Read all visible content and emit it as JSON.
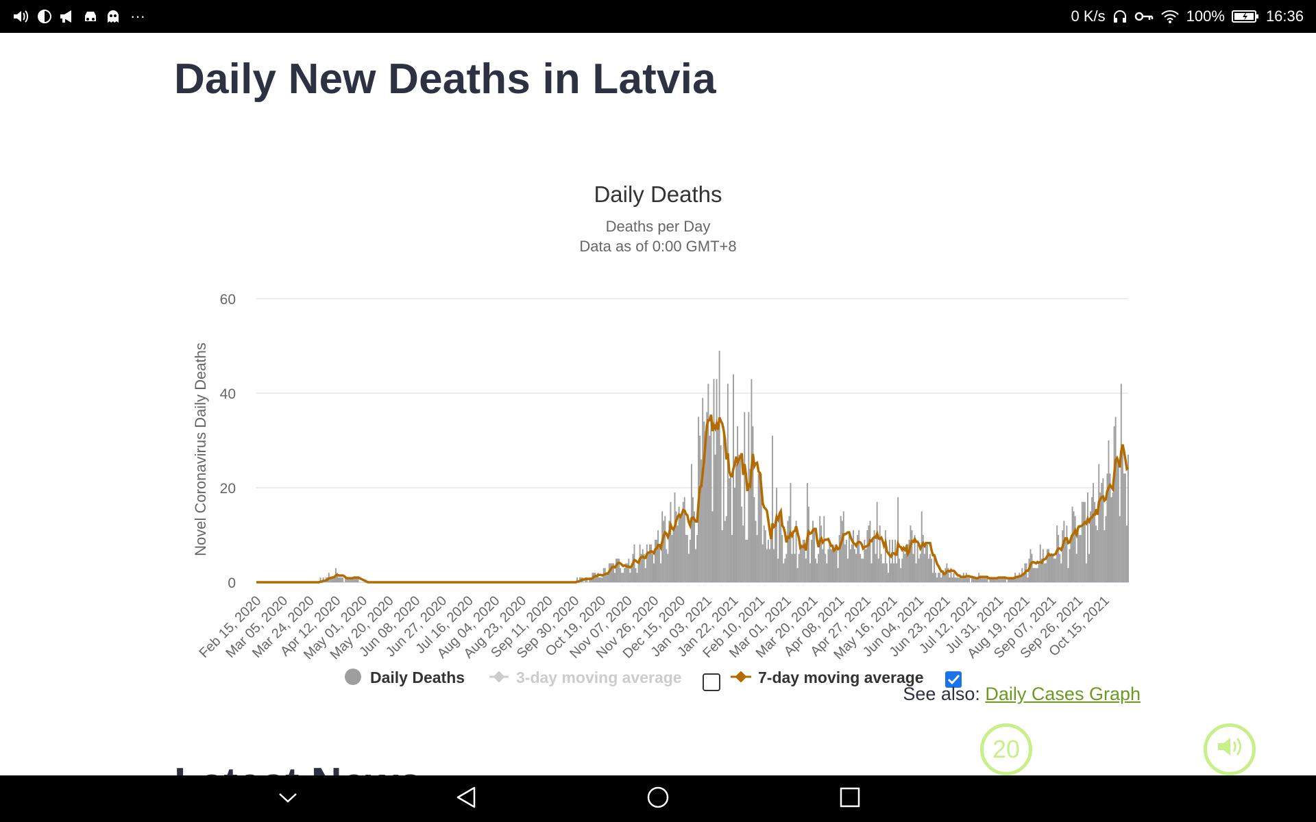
{
  "status_bar": {
    "network_speed": "0 K/s",
    "battery": "100%",
    "time": "16:36",
    "left_icons": [
      "volume-icon",
      "dnd-icon",
      "megaphone-icon",
      "car-icon",
      "ghost-icon",
      "more-dots-icon"
    ],
    "overflow_label": "···"
  },
  "page": {
    "title": "Daily New Deaths in Latvia",
    "see_also_prefix": "See also: ",
    "see_also_link": "Daily Cases Graph",
    "next_section_title": "Latest News"
  },
  "floating_buttons": {
    "counter_value": "20"
  },
  "chart_data": {
    "type": "bar",
    "title": "Daily Deaths",
    "subtitle_line1": "Deaths per Day",
    "subtitle_line2": "Data as of 0:00 GMT+8",
    "xlabel": "",
    "ylabel": "Novel Coronavirus Daily Deaths",
    "ylim": [
      0,
      60
    ],
    "yticks": [
      0,
      20,
      40,
      60
    ],
    "grid": true,
    "x_tick_labels": [
      "Feb 15, 2020",
      "Mar 05, 2020",
      "Mar 24, 2020",
      "Apr 12, 2020",
      "May 01, 2020",
      "May 20, 2020",
      "Jun 08, 2020",
      "Jun 27, 2020",
      "Jul 16, 2020",
      "Aug 04, 2020",
      "Aug 23, 2020",
      "Sep 11, 2020",
      "Sep 30, 2020",
      "Oct 19, 2020",
      "Nov 07, 2020",
      "Nov 26, 2020",
      "Dec 15, 2020",
      "Jan 03, 2021",
      "Jan 22, 2021",
      "Feb 10, 2021",
      "Mar 01, 2021",
      "Mar 20, 2021",
      "Apr 08, 2021",
      "Apr 27, 2021",
      "May 16, 2021",
      "Jun 04, 2021",
      "Jun 23, 2021",
      "Jul 12, 2021",
      "Jul 31, 2021",
      "Aug 19, 2021",
      "Sep 07, 2021",
      "Sep 26, 2021",
      "Oct 15, 2021"
    ],
    "start_date": "Feb 15, 2020",
    "days_between_ticks": 19,
    "total_days": 626,
    "daily_anchor_days": [
      0,
      40,
      50,
      60,
      62,
      65,
      70,
      80,
      100,
      120,
      140,
      160,
      180,
      200,
      220,
      240,
      250,
      255,
      260,
      270,
      280,
      290,
      300,
      310,
      315,
      320,
      325,
      330,
      335,
      340,
      345,
      350,
      355,
      360,
      365,
      370,
      375,
      380,
      385,
      390,
      395,
      400,
      405,
      410,
      415,
      420,
      425,
      430,
      435,
      440,
      445,
      450,
      455,
      460,
      465,
      470,
      475,
      480,
      485,
      490,
      495,
      500,
      505,
      510,
      515,
      520,
      525,
      530,
      535,
      540,
      545,
      550,
      555,
      560,
      565,
      570,
      575,
      580,
      585,
      590,
      595,
      600,
      605,
      610,
      615,
      620,
      622,
      625
    ],
    "daily_anchor_values": [
      0,
      0,
      1,
      2,
      1,
      1,
      1,
      0,
      0,
      0,
      0,
      0,
      0,
      0,
      0,
      1,
      2,
      3,
      4,
      5,
      6,
      9,
      12,
      15,
      20,
      24,
      26,
      35,
      27,
      25,
      20,
      18,
      29,
      21,
      16,
      14,
      12,
      10,
      10,
      9,
      11,
      8,
      9,
      8,
      7,
      10,
      9,
      7,
      6,
      8,
      9,
      8,
      6,
      5,
      6,
      8,
      7,
      6,
      4,
      2,
      3,
      2,
      1,
      1,
      1,
      1,
      1,
      1,
      1,
      1,
      1,
      2,
      4,
      5,
      6,
      7,
      8,
      9,
      10,
      10,
      11,
      14,
      16,
      18,
      22,
      26,
      24,
      22
    ],
    "daily_spikes": [
      [
        342,
        44
      ],
      [
        350,
        36
      ],
      [
        370,
        31
      ],
      [
        383,
        21
      ],
      [
        395,
        21
      ],
      [
        445,
        17
      ],
      [
        460,
        18
      ],
      [
        477,
        15
      ],
      [
        617,
        26
      ]
    ],
    "legend": [
      {
        "label": "Daily Deaths",
        "color": "#9e9e9e",
        "active": true,
        "marker": "circle"
      },
      {
        "label": "3-day moving average",
        "color": "#cccccc",
        "active": false,
        "marker": "line-diamond",
        "checked": false
      },
      {
        "label": "7-day moving average",
        "color": "#b36b00",
        "active": true,
        "marker": "line-diamond",
        "checked": true
      }
    ],
    "series_colors": {
      "bars": "#9e9e9e",
      "moving_avg": "#b36b00",
      "grid": "#e6e6e6",
      "axis_text": "#666666",
      "title_text": "#333333"
    }
  }
}
